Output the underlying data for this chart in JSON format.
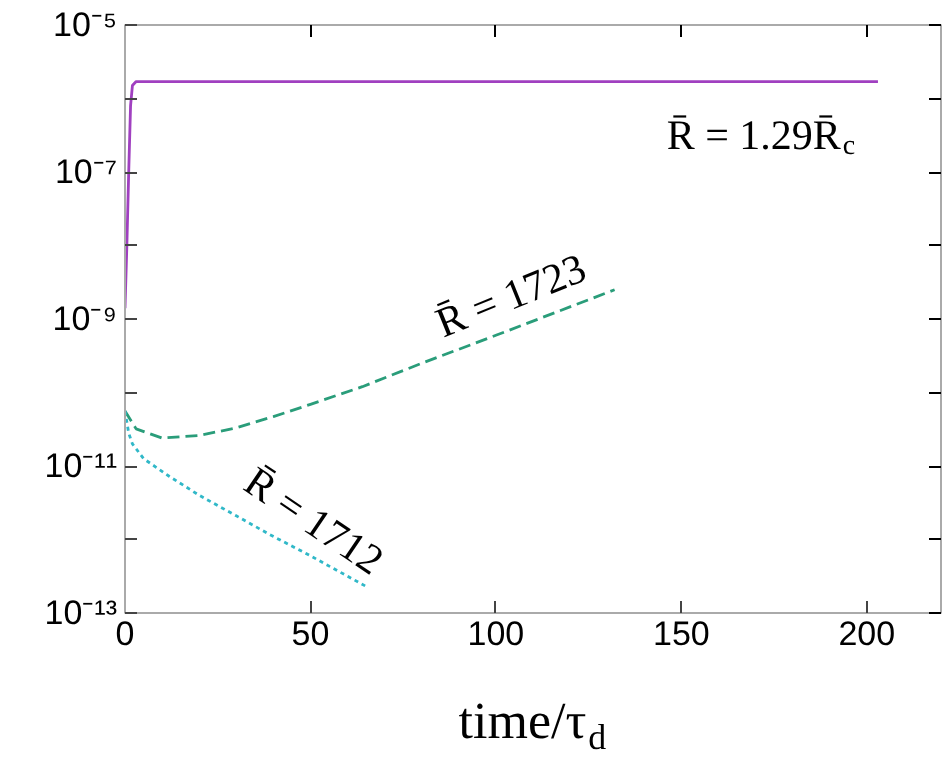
{
  "chart_data": {
    "type": "line",
    "xlabel": "time/τ$_{d}$",
    "log": "y",
    "grid": false,
    "marker": "none",
    "xlim": [
      0,
      220
    ],
    "xticks": [
      0,
      50,
      100,
      150,
      200
    ],
    "ylim": [
      1e-13,
      1e-05
    ],
    "yticks": [
      {
        "value": 1e-05,
        "label": "10⁻⁵"
      },
      {
        "value": 1e-06,
        "label": null
      },
      {
        "value": 1e-07,
        "label": "10⁻⁷"
      },
      {
        "value": 1e-08,
        "label": null
      },
      {
        "value": 1e-09,
        "label": "10⁻⁹"
      },
      {
        "value": 1e-10,
        "label": null
      },
      {
        "value": 1e-11,
        "label": "10⁻¹¹"
      },
      {
        "value": 1e-12,
        "label": null
      },
      {
        "value": 1e-13,
        "label": "10⁻¹³"
      }
    ],
    "series": [
      {
        "color": "#a040c0",
        "line_style": "solid",
        "x": [
          0,
          0.5,
          1,
          1.5,
          2,
          3,
          50,
          100,
          150,
          203
        ],
        "values": [
          1.4e-09,
          1e-08,
          1e-07,
          8e-07,
          1.5e-06,
          1.7e-06,
          1.7e-06,
          1.7e-06,
          1.7e-06,
          1.7e-06
        ]
      },
      {
        "color": "#2a9d7a",
        "line_style": "dashed",
        "x": [
          0,
          3,
          10,
          20,
          30,
          40,
          50,
          64,
          80,
          100,
          132
        ],
        "values": [
          5.6e-11,
          3.2e-11,
          2.4e-11,
          2.6e-11,
          3.3e-11,
          4.7e-11,
          6.9e-11,
          1.2e-10,
          2.5e-10,
          6e-10,
          2.5e-09
        ]
      },
      {
        "color": "#30b8c8",
        "line_style": "dotted",
        "x": [
          0,
          1,
          2,
          5,
          12,
          20,
          30,
          39,
          50,
          65
        ],
        "values": [
          5.6e-11,
          2.8e-11,
          2e-11,
          1.26e-11,
          7.2e-12,
          4e-12,
          2.1e-12,
          1.17e-12,
          6e-13,
          2.3e-13
        ]
      }
    ],
    "annotations": [
      "R̄ = 1.29R̄$_{c}$",
      "R̄ = 1723",
      "R̄ = 1712"
    ]
  }
}
